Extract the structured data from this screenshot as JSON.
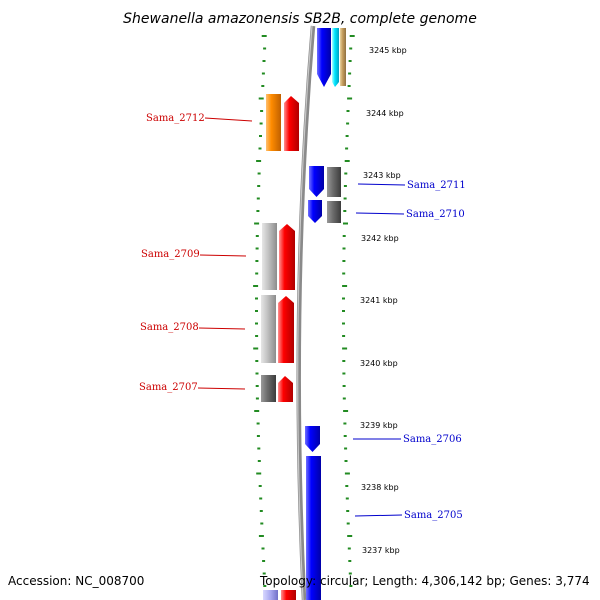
{
  "title": "Shewanella amazonensis SB2B, complete genome",
  "accession": "Accession: NC_008700",
  "topology": "Topology: circular; Length: 4,306,142 bp; Genes: 3,774",
  "colors": {
    "forward_label": "#cc0000",
    "reverse_label": "#0000cc",
    "tick": "#228b22",
    "backbone": "#888888"
  },
  "kbp_labels": [
    {
      "kbp": 3245,
      "text": "3245 kbp"
    },
    {
      "kbp": 3244,
      "text": "3244 kbp"
    },
    {
      "kbp": 3243,
      "text": "3243 kbp"
    },
    {
      "kbp": 3242,
      "text": "3242 kbp"
    },
    {
      "kbp": 3241,
      "text": "3241 kbp"
    },
    {
      "kbp": 3240,
      "text": "3240 kbp"
    },
    {
      "kbp": 3239,
      "text": "3239 kbp"
    },
    {
      "kbp": 3238,
      "text": "3238 kbp"
    },
    {
      "kbp": 3237,
      "text": "3237 kbp"
    }
  ],
  "gene_labels": [
    {
      "text": "Sama_2712",
      "strand": "forward"
    },
    {
      "text": "Sama_2711",
      "strand": "reverse"
    },
    {
      "text": "Sama_2710",
      "strand": "reverse"
    },
    {
      "text": "Sama_2709",
      "strand": "forward"
    },
    {
      "text": "Sama_2708",
      "strand": "forward"
    },
    {
      "text": "Sama_2707",
      "strand": "forward"
    },
    {
      "text": "Sama_2706",
      "strand": "reverse"
    },
    {
      "text": "Sama_2705",
      "strand": "reverse"
    }
  ]
}
